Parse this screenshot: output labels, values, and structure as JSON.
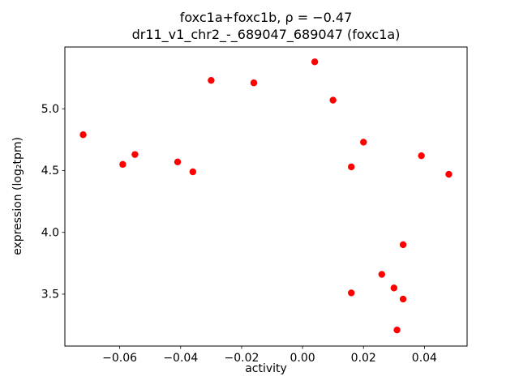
{
  "chart_data": {
    "type": "scatter",
    "title": "foxc1a+foxc1b, ρ = −0.47",
    "subtitle": "dr11_v1_chr2_-_689047_689047 (foxc1a)",
    "xlabel": "activity",
    "ylabel": "expression (log₂tpm)",
    "xlim": [
      -0.078,
      0.054
    ],
    "ylim": [
      3.08,
      5.5
    ],
    "grid": false,
    "legend": "none",
    "marker_color": "#ff0000",
    "x_ticks": [
      -0.06,
      -0.04,
      -0.02,
      0.0,
      0.02,
      0.04
    ],
    "x_tick_labels": [
      "−0.06",
      "−0.04",
      "−0.02",
      "0.00",
      "0.02",
      "0.04"
    ],
    "y_ticks": [
      3.5,
      4.0,
      4.5,
      5.0
    ],
    "y_tick_labels": [
      "3.5",
      "4.0",
      "4.5",
      "5.0"
    ],
    "points": [
      {
        "x": -0.072,
        "y": 4.79
      },
      {
        "x": -0.059,
        "y": 4.55
      },
      {
        "x": -0.055,
        "y": 4.63
      },
      {
        "x": -0.041,
        "y": 4.57
      },
      {
        "x": -0.036,
        "y": 4.49
      },
      {
        "x": -0.03,
        "y": 5.23
      },
      {
        "x": -0.016,
        "y": 5.21
      },
      {
        "x": 0.004,
        "y": 5.38
      },
      {
        "x": 0.01,
        "y": 5.07
      },
      {
        "x": 0.016,
        "y": 4.53
      },
      {
        "x": 0.02,
        "y": 4.73
      },
      {
        "x": 0.016,
        "y": 3.51
      },
      {
        "x": 0.026,
        "y": 3.66
      },
      {
        "x": 0.03,
        "y": 3.55
      },
      {
        "x": 0.031,
        "y": 3.21
      },
      {
        "x": 0.033,
        "y": 3.46
      },
      {
        "x": 0.033,
        "y": 3.9
      },
      {
        "x": 0.039,
        "y": 4.62
      },
      {
        "x": 0.048,
        "y": 4.47
      }
    ]
  }
}
